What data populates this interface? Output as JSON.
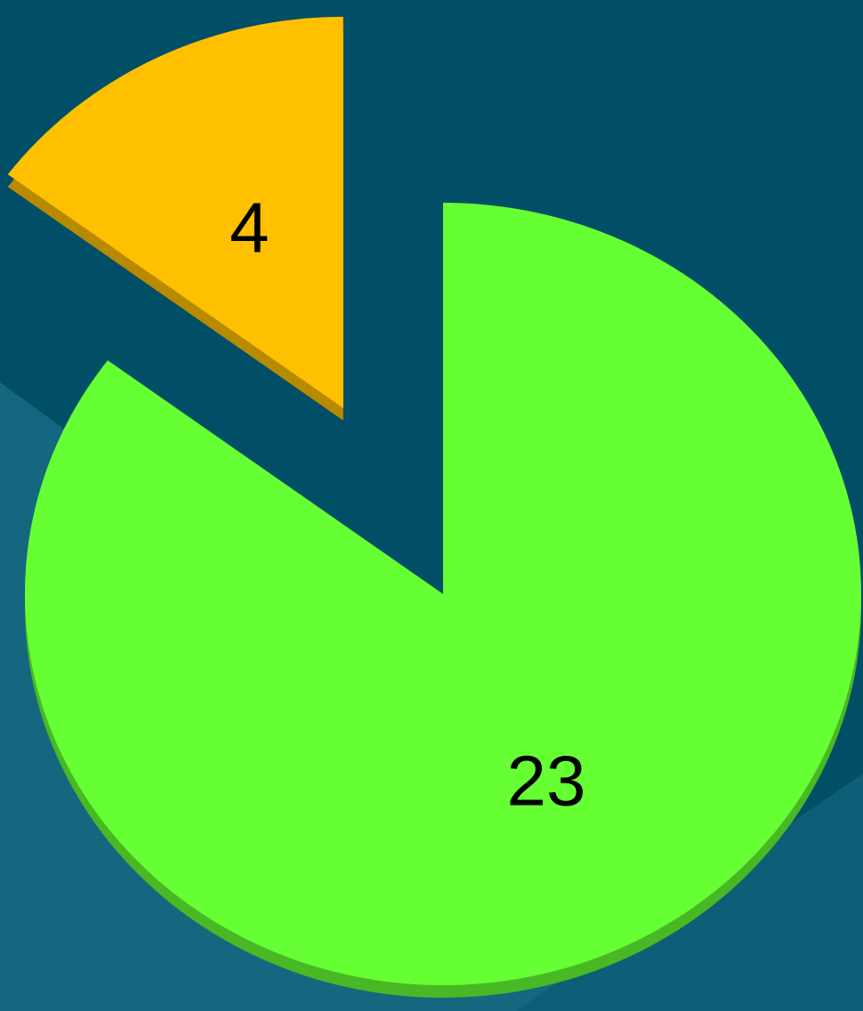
{
  "chart_data": {
    "type": "pie",
    "values": [
      4,
      23
    ],
    "colors": [
      "#ffc000",
      "#66ff33"
    ]
  }
}
